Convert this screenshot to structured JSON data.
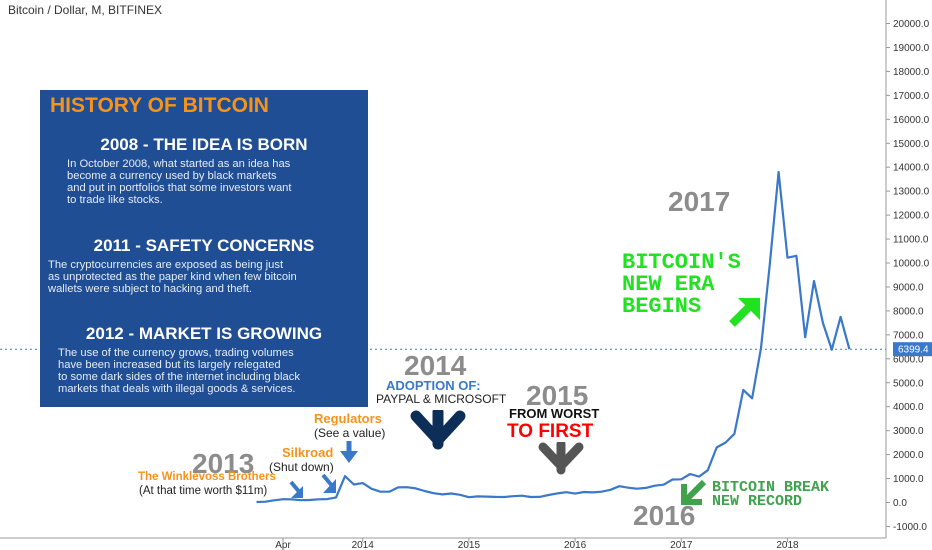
{
  "header": {
    "title": "Bitcoin / Dollar, M, BITFINEX"
  },
  "price_tag": "6399.4",
  "info_box": {
    "title": "HISTORY OF BITCOIN",
    "sections": [
      {
        "heading": "2008 - THE IDEA IS BORN",
        "lines": [
          "In October 2008, what started as an idea has",
          "become a currency used by black markets",
          "and put in portfolios that some investors want",
          "to trade like stocks."
        ]
      },
      {
        "heading": "2011 - SAFETY CONCERNS",
        "lines": [
          "The cryptocurrencies are exposed as being just",
          "as unprotected as the paper kind when few bitcoin",
          "wallets were subject to hacking and theft."
        ]
      },
      {
        "heading": "2012 - MARKET IS GROWING",
        "lines": [
          "The use of the currency grows, trading volumes",
          "have been increased but its largely relegated",
          "to some dark sides of the internet including black",
          "markets that deals with illegal goods & services."
        ]
      }
    ]
  },
  "annotations": {
    "year_2013": "2013",
    "winklevoss": "The Winklevoss Brothers",
    "winklevoss_sub": "(At that time worth $11m)",
    "silkroad": "Silkroad",
    "silkroad_sub": "(Shut down)",
    "regulators": "Regulators",
    "regulators_sub": "(See a value)",
    "year_2014": "2014",
    "adoption": "ADOPTION OF:",
    "adoption_sub": "PAYPAL & MICROSOFT",
    "year_2015": "2015",
    "from_worst": "FROM WORST",
    "to_first": "TO FIRST",
    "year_2016": "2016",
    "break_1": "BITCOIN BREAK",
    "break_2": "NEW RECORD",
    "year_2017": "2017",
    "era_1": "BITCOIN'S",
    "era_2": "NEW ERA",
    "era_3": "BEGINS"
  },
  "colors": {
    "line": "#3a78c9",
    "info_bg": "#1f4e94",
    "orange": "#f7931a",
    "green": "#21e221",
    "red": "#ff0000",
    "gray": "#8c8c8c",
    "navy": "#0d2f57",
    "price_tag": "#3a78c9"
  },
  "chart_data": {
    "type": "line",
    "title": "Bitcoin / Dollar, M, BITFINEX",
    "xlabel": "",
    "ylabel": "",
    "x_tick_labels": [
      "Apr",
      "2014",
      "2015",
      "2016",
      "2017",
      "2018"
    ],
    "y_tick_labels": [
      "-1000.0",
      "0.0",
      "1000.0",
      "2000.0",
      "3000.0",
      "4000.0",
      "5000.0",
      "6000.0",
      "7000.0",
      "8000.0",
      "9000.0",
      "10000.0",
      "11000.0",
      "12000.0",
      "13000.0",
      "14000.0",
      "15000.0",
      "16000.0",
      "17000.0",
      "18000.0",
      "19000.0",
      "20000.0"
    ],
    "ylim": [
      -1000,
      20500
    ],
    "grid": false,
    "series": [
      {
        "x": [
          "2013-01",
          "2013-02",
          "2013-03",
          "2013-04",
          "2013-05",
          "2013-06",
          "2013-07",
          "2013-08",
          "2013-09",
          "2013-10",
          "2013-11",
          "2013-12",
          "2014-01",
          "2014-02",
          "2014-03",
          "2014-04",
          "2014-05",
          "2014-06",
          "2014-07",
          "2014-08",
          "2014-09",
          "2014-10",
          "2014-11",
          "2014-12",
          "2015-01",
          "2015-02",
          "2015-03",
          "2015-04",
          "2015-05",
          "2015-06",
          "2015-07",
          "2015-08",
          "2015-09",
          "2015-10",
          "2015-11",
          "2015-12",
          "2016-01",
          "2016-02",
          "2016-03",
          "2016-04",
          "2016-05",
          "2016-06",
          "2016-07",
          "2016-08",
          "2016-09",
          "2016-10",
          "2016-11",
          "2016-12",
          "2017-01",
          "2017-02",
          "2017-03",
          "2017-04",
          "2017-05",
          "2017-06",
          "2017-07",
          "2017-08",
          "2017-09",
          "2017-10",
          "2017-11",
          "2017-12",
          "2018-01",
          "2018-02",
          "2018-03",
          "2018-04",
          "2018-05",
          "2018-06",
          "2018-07",
          "2018-08"
        ],
        "values": [
          20,
          33,
          93,
          139,
          129,
          97,
          106,
          135,
          141,
          211,
          1100,
          750,
          810,
          570,
          450,
          450,
          630,
          640,
          590,
          480,
          390,
          340,
          375,
          320,
          220,
          255,
          245,
          235,
          230,
          265,
          285,
          230,
          235,
          315,
          380,
          430,
          370,
          440,
          420,
          450,
          530,
          680,
          620,
          575,
          610,
          700,
          745,
          960,
          970,
          1190,
          1080,
          1350,
          2300,
          2500,
          2870,
          4700,
          4350,
          6450,
          9950,
          13800,
          10220,
          10300,
          6900,
          9250,
          7500,
          6380,
          7750,
          6399.4
        ]
      }
    ]
  }
}
